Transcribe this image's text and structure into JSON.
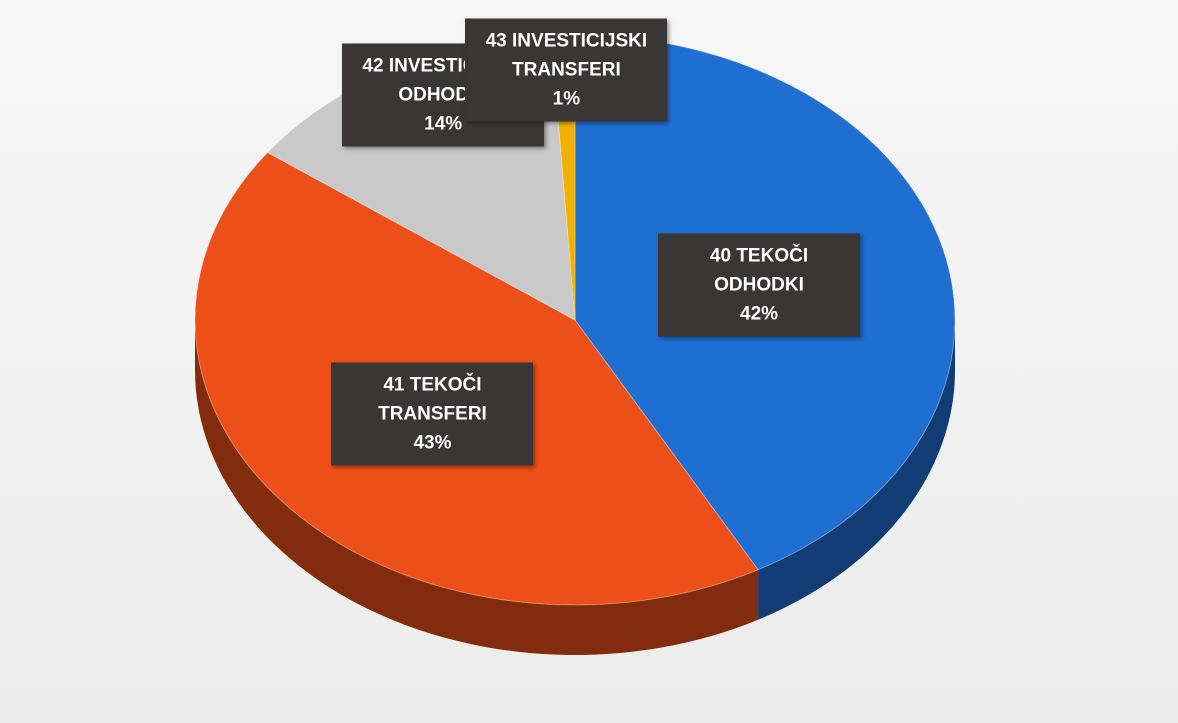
{
  "chart_data": {
    "type": "pie",
    "categories": [
      "40 TEKOČI ODHODKI",
      "41 TEKOČI TRANSFERI",
      "42 INVESTICIJSKI ODHODKI",
      "43 INVESTICIJSKI TRANSFERI"
    ],
    "values": [
      42,
      43,
      14,
      1
    ],
    "value_labels": [
      "42%",
      "43%",
      "14%",
      "1%"
    ],
    "colors": [
      "#1f6fd3",
      "#ec5018",
      "#c9c9c9",
      "#f3b000"
    ]
  }
}
